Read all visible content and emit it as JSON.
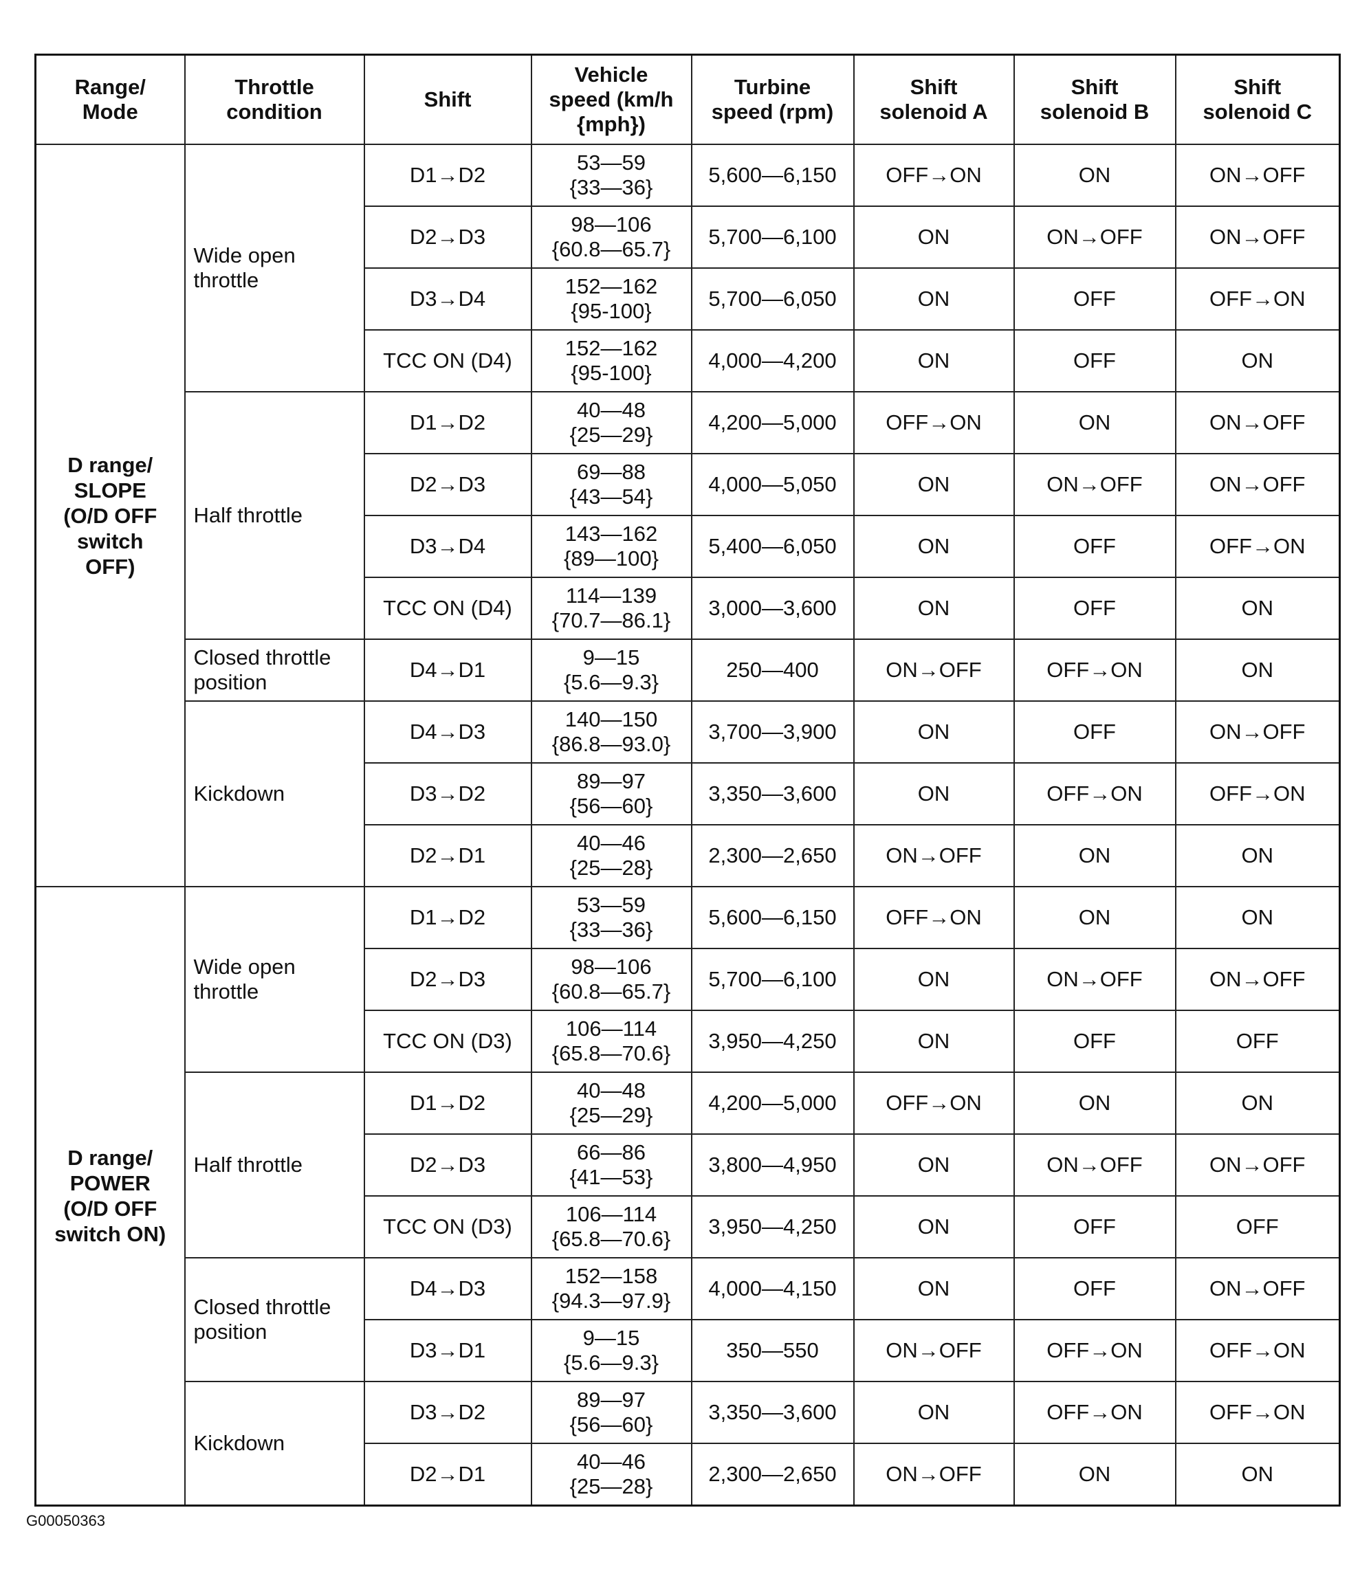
{
  "headers": [
    "Range/\nMode",
    "Throttle\ncondition",
    "Shift",
    "Vehicle\nspeed (km/h\n{mph})",
    "Turbine\nspeed (rpm)",
    "Shift\nsolenoid A",
    "Shift\nsolenoid B",
    "Shift\nsolenoid C"
  ],
  "groups": [
    {
      "mode": "D range/\nSLOPE\n(O/D OFF\nswitch\nOFF)",
      "throttles": [
        {
          "condition": "Wide open\nthrottle",
          "rows": [
            [
              "D1→D2",
              "53—59",
              "{33—36}",
              "5,600—6,150",
              "OFF→ON",
              "ON",
              "ON→OFF"
            ],
            [
              "D2→D3",
              "98—106",
              "{60.8—65.7}",
              "5,700—6,100",
              "ON",
              "ON→OFF",
              "ON→OFF"
            ],
            [
              "D3→D4",
              "152—162",
              "{95-100}",
              "5,700—6,050",
              "ON",
              "OFF",
              "OFF→ON"
            ],
            [
              "TCC ON (D4)",
              "152—162",
              "{95-100}",
              "4,000—4,200",
              "ON",
              "OFF",
              "ON"
            ]
          ]
        },
        {
          "condition": "Half throttle",
          "rows": [
            [
              "D1→D2",
              "40—48",
              "{25—29}",
              "4,200—5,000",
              "OFF→ON",
              "ON",
              "ON→OFF"
            ],
            [
              "D2→D3",
              "69—88",
              "{43—54}",
              "4,000—5,050",
              "ON",
              "ON→OFF",
              "ON→OFF"
            ],
            [
              "D3→D4",
              "143—162",
              "{89—100}",
              "5,400—6,050",
              "ON",
              "OFF",
              "OFF→ON"
            ],
            [
              "TCC ON (D4)",
              "114—139",
              "{70.7—86.1}",
              "3,000—3,600",
              "ON",
              "OFF",
              "ON"
            ]
          ]
        },
        {
          "condition": "Closed throttle\nposition",
          "rows": [
            [
              "D4→D1",
              "9—15",
              "{5.6—9.3}",
              "250—400",
              "ON→OFF",
              "OFF→ON",
              "ON"
            ]
          ]
        },
        {
          "condition": "Kickdown",
          "rows": [
            [
              "D4→D3",
              "140—150",
              "{86.8—93.0}",
              "3,700—3,900",
              "ON",
              "OFF",
              "ON→OFF"
            ],
            [
              "D3→D2",
              "89—97",
              "{56—60}",
              "3,350—3,600",
              "ON",
              "OFF→ON",
              "OFF→ON"
            ],
            [
              "D2→D1",
              "40—46",
              "{25—28}",
              "2,300—2,650",
              "ON→OFF",
              "ON",
              "ON"
            ]
          ]
        }
      ]
    },
    {
      "mode": "D range/\nPOWER\n(O/D OFF\nswitch ON)",
      "throttles": [
        {
          "condition": "Wide open\nthrottle",
          "rows": [
            [
              "D1→D2",
              "53—59",
              "{33—36}",
              "5,600—6,150",
              "OFF→ON",
              "ON",
              "ON"
            ],
            [
              "D2→D3",
              "98—106",
              "{60.8—65.7}",
              "5,700—6,100",
              "ON",
              "ON→OFF",
              "ON→OFF"
            ],
            [
              "TCC ON (D3)",
              "106—114",
              "{65.8—70.6}",
              "3,950—4,250",
              "ON",
              "OFF",
              "OFF"
            ]
          ]
        },
        {
          "condition": "Half throttle",
          "rows": [
            [
              "D1→D2",
              "40—48",
              "{25—29}",
              "4,200—5,000",
              "OFF→ON",
              "ON",
              "ON"
            ],
            [
              "D2→D3",
              "66—86",
              "{41—53}",
              "3,800—4,950",
              "ON",
              "ON→OFF",
              "ON→OFF"
            ],
            [
              "TCC ON (D3)",
              "106—114",
              "{65.8—70.6}",
              "3,950—4,250",
              "ON",
              "OFF",
              "OFF"
            ]
          ]
        },
        {
          "condition": "Closed throttle\nposition",
          "rows": [
            [
              "D4→D3",
              "152—158",
              "{94.3—97.9}",
              "4,000—4,150",
              "ON",
              "OFF",
              "ON→OFF"
            ],
            [
              "D3→D1",
              "9—15",
              "{5.6—9.3}",
              "350—550",
              "ON→OFF",
              "OFF→ON",
              "OFF→ON"
            ]
          ]
        },
        {
          "condition": "Kickdown",
          "rows": [
            [
              "D3→D2",
              "89—97",
              "{56—60}",
              "3,350—3,600",
              "ON",
              "OFF→ON",
              "OFF→ON"
            ],
            [
              "D2→D1",
              "40—46",
              "{25—28}",
              "2,300—2,650",
              "ON→OFF",
              "ON",
              "ON"
            ]
          ]
        }
      ]
    }
  ],
  "figure_id": "G00050363"
}
